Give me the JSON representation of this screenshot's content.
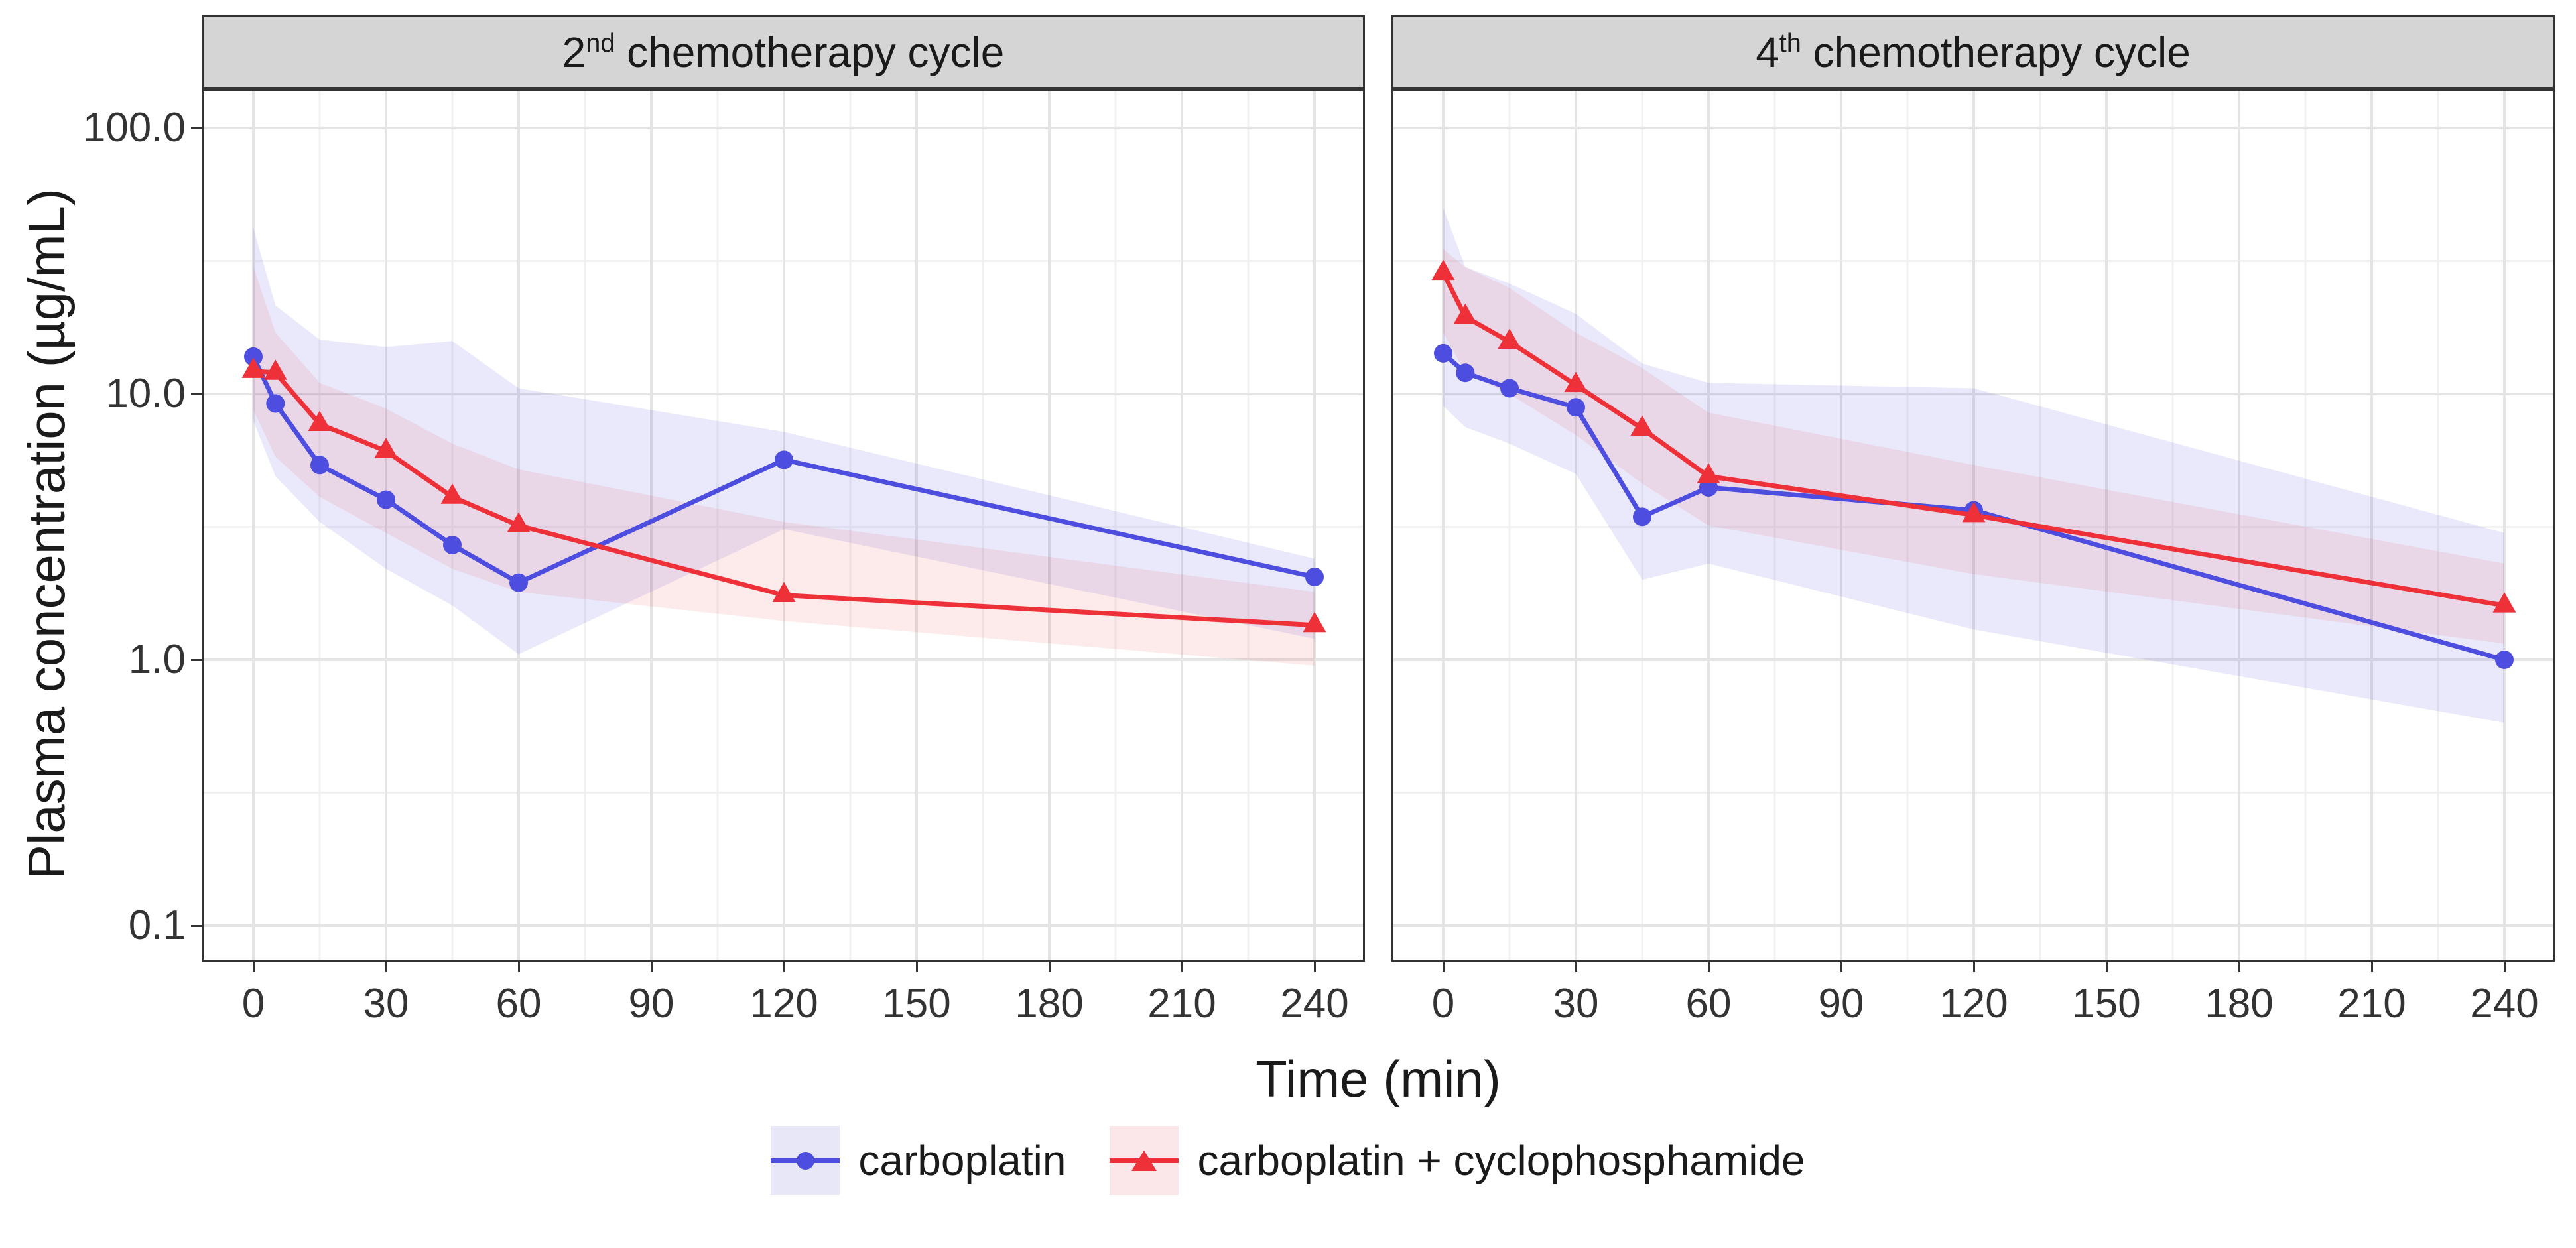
{
  "y_axis": {
    "title": "Plasma concentration (µg/mL)",
    "tick_labels": [
      "100.0",
      "10.0",
      "1.0",
      "0.1"
    ],
    "tick_values": [
      100,
      10,
      1,
      0.1
    ]
  },
  "x_axis": {
    "title": "Time (min)",
    "tick_values": [
      0,
      30,
      60,
      90,
      120,
      150,
      180,
      210,
      240
    ]
  },
  "legend": {
    "items": [
      {
        "label": "carboplatin",
        "color": "#4d4de0",
        "marker": "circle",
        "key_bg": "#e7e7f8"
      },
      {
        "label": "carboplatin + cyclophosphamide",
        "color": "#ee3038",
        "marker": "triangle",
        "key_bg": "#fbe7e9"
      }
    ]
  },
  "colors": {
    "strip_bg": "#d5d5d5",
    "panel_border": "#333333",
    "grid_major": "#e4e4e4",
    "grid_minor": "#f1f1f1",
    "carboplatin": "#4d4de0",
    "combo": "#ee3038",
    "carboplatin_ribbon": "rgba(82,82,224,0.13)",
    "combo_ribbon": "rgba(238,48,56,0.10)"
  },
  "chart_data": {
    "type": "line",
    "log_y": true,
    "xlabel": "Time (min)",
    "ylabel": "Plasma concentration (µg/mL)",
    "x": [
      0,
      5,
      15,
      30,
      45,
      60,
      120,
      240
    ],
    "xlim": [
      0,
      240
    ],
    "ylim_log": [
      0.07,
      135
    ],
    "grid": "on",
    "legend_position": "bottom",
    "facets": [
      {
        "strip": {
          "base": "2",
          "sup": "nd",
          "rest": " chemotherapy cycle"
        },
        "series": [
          {
            "name": "carboplatin",
            "marker": "circle",
            "color": "#4d4de0",
            "ribbon_fill": "rgba(82,82,224,0.13)",
            "values": [
              13.8,
              9.2,
              5.4,
              4.0,
              2.7,
              1.95,
              5.65,
              2.05
            ],
            "band_lo": [
              7.9,
              4.9,
              3.3,
              2.2,
              1.6,
              1.05,
              3.1,
              1.2
            ],
            "band_hi": [
              42,
              21.5,
              16,
              15,
              15.8,
              10.5,
              7.2,
              2.4
            ]
          },
          {
            "name": "carboplatin + cyclophosphamide",
            "marker": "triangle",
            "color": "#ee3038",
            "ribbon_fill": "rgba(238,48,56,0.10)",
            "values": [
              12.2,
              12.0,
              7.7,
              6.1,
              4.1,
              3.2,
              1.75,
              1.35
            ],
            "band_lo": [
              8.7,
              5.8,
              4.1,
              3.0,
              2.2,
              1.8,
              1.4,
              0.95
            ],
            "band_hi": [
              30,
              17,
              11,
              8.8,
              6.5,
              5.2,
              3.3,
              1.8
            ]
          }
        ]
      },
      {
        "strip": {
          "base": "4",
          "sup": "th",
          "rest": " chemotherapy cycle"
        },
        "series": [
          {
            "name": "carboplatin",
            "marker": "circle",
            "color": "#4d4de0",
            "ribbon_fill": "rgba(82,82,224,0.13)",
            "values": [
              14.2,
              12.0,
              10.5,
              8.9,
              3.45,
              4.45,
              3.65,
              1.0
            ],
            "band_lo": [
              9.0,
              7.5,
              6.5,
              5.0,
              2.0,
              2.3,
              1.3,
              0.58
            ],
            "band_hi": [
              50,
              30,
              26,
              20,
              13,
              11,
              10.5,
              3.0
            ]
          },
          {
            "name": "carboplatin + cyclophosphamide",
            "marker": "triangle",
            "color": "#ee3038",
            "ribbon_fill": "rgba(238,48,56,0.10)",
            "values": [
              28.5,
              19.5,
              15.7,
              10.8,
              7.4,
              4.9,
              3.5,
              1.6
            ],
            "band_lo": [
              17,
              12,
              10,
              7,
              4.6,
              3.2,
              2.1,
              1.15
            ],
            "band_hi": [
              35,
              30,
              25,
              17,
              12.5,
              8.5,
              5.4,
              2.3
            ]
          }
        ]
      }
    ]
  }
}
